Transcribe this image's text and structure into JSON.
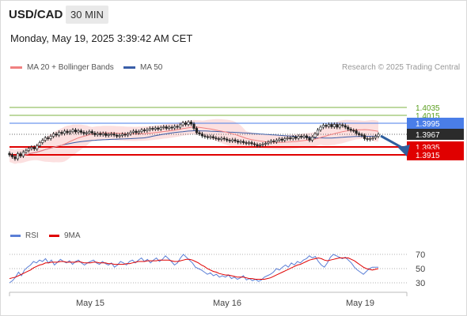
{
  "header": {
    "pair": "USD/CAD",
    "timeframe": "30 MIN",
    "datetime": "Monday, May 19, 2025 3:39:42 AM CET"
  },
  "legend": {
    "ma20": {
      "label": "MA 20 + Bollinger Bands",
      "color": "#f08080"
    },
    "ma50": {
      "label": "MA 50",
      "color": "#3a5ea8"
    },
    "copyright": "Research © 2025 Trading Central"
  },
  "rsi_legend": {
    "rsi": {
      "label": "RSI",
      "color": "#5b7fd6"
    },
    "ma9": {
      "label": "9MA",
      "color": "#e00000"
    }
  },
  "chart_data": [
    {
      "type": "candlestick",
      "title": "",
      "x_ticks": [
        "May 15",
        "May 16",
        "May 19"
      ],
      "levels": [
        {
          "value": 1.4035,
          "label": "1.4035",
          "kind": "target",
          "color": "#7cb342"
        },
        {
          "value": 1.4015,
          "label": "1.4015",
          "kind": "target",
          "color": "#7cb342"
        },
        {
          "value": 1.3995,
          "label": "1.3995",
          "kind": "pivot",
          "color": "#4a7ee8"
        },
        {
          "value": 1.3967,
          "label": "1.3967",
          "kind": "last",
          "color": "#2b2b2b"
        },
        {
          "value": 1.3935,
          "label": "1.3935",
          "kind": "support",
          "color": "#e00000"
        },
        {
          "value": 1.3915,
          "label": "1.3915",
          "kind": "support",
          "color": "#e00000"
        }
      ],
      "close": [
        1.3915,
        1.391,
        1.3905,
        1.3918,
        1.3912,
        1.3922,
        1.3926,
        1.3931,
        1.3934,
        1.393,
        1.3938,
        1.3946,
        1.3952,
        1.3958,
        1.3956,
        1.3962,
        1.3968,
        1.3965,
        1.3972,
        1.3969,
        1.3975,
        1.3971,
        1.3974,
        1.3978,
        1.3973,
        1.3976,
        1.3972,
        1.3969,
        1.3971,
        1.3974,
        1.397,
        1.3966,
        1.3969,
        1.3966,
        1.3969,
        1.3964,
        1.3966,
        1.3968,
        1.3965,
        1.3962,
        1.3964,
        1.3967,
        1.3965,
        1.3968,
        1.3972,
        1.3975,
        1.3971,
        1.3974,
        1.3978,
        1.3976,
        1.3979,
        1.3982,
        1.398,
        1.3983,
        1.398,
        1.3984,
        1.3986,
        1.3982,
        1.3985,
        1.3983,
        1.3987,
        1.3985,
        1.3991,
        1.3996,
        1.3992,
        1.3998,
        1.3993,
        1.3982,
        1.3971,
        1.3968,
        1.3963,
        1.3961,
        1.3959,
        1.3961,
        1.3958,
        1.3956,
        1.3954,
        1.3957,
        1.3955,
        1.3952,
        1.395,
        1.3953,
        1.395,
        1.3947,
        1.3949,
        1.3946,
        1.3944,
        1.3946,
        1.3943,
        1.3941,
        1.3938,
        1.394,
        1.3942,
        1.3944,
        1.3947,
        1.395,
        1.3948,
        1.3952,
        1.3955,
        1.3952,
        1.3956,
        1.3958,
        1.3956,
        1.396,
        1.3957,
        1.3962,
        1.396,
        1.3963,
        1.3958,
        1.3952,
        1.396,
        1.3968,
        1.3978,
        1.3985,
        1.399,
        1.3987,
        1.3992,
        1.3986,
        1.3992,
        1.3985,
        1.3991,
        1.3989,
        1.3985,
        1.398,
        1.3977,
        1.3976,
        1.3969,
        1.3966,
        1.3964,
        1.3956,
        1.3954,
        1.3956,
        1.3958,
        1.3962,
        1.3967
      ],
      "ma20_note": "MA 20 + Bollinger Bands",
      "ma50_note": "MA 50",
      "forecast": {
        "from": 1.3967,
        "to": 1.3915,
        "direction": "down"
      }
    },
    {
      "type": "line",
      "title": "",
      "y_ticks": [
        "70",
        "50",
        "30"
      ],
      "series": [
        {
          "name": "RSI",
          "color": "#5b7fd6"
        },
        {
          "name": "9MA",
          "color": "#e00000"
        }
      ],
      "rsi": [
        30,
        33,
        38,
        45,
        40,
        48,
        52,
        55,
        60,
        58,
        62,
        60,
        64,
        58,
        62,
        55,
        59,
        63,
        60,
        58,
        61,
        56,
        60,
        62,
        58,
        55,
        58,
        60,
        62,
        58,
        56,
        60,
        57,
        55,
        58,
        52,
        55,
        60,
        58,
        55,
        60,
        62,
        58,
        62,
        65,
        60,
        63,
        58,
        62,
        65,
        60,
        63,
        68,
        64,
        60,
        55,
        58,
        65,
        70,
        66,
        62,
        58,
        52,
        50,
        48,
        45,
        42,
        44,
        40,
        42,
        38,
        40,
        38,
        41,
        36,
        38,
        35,
        37,
        40,
        34,
        36,
        33,
        35,
        32,
        34,
        38,
        40,
        42,
        45,
        50,
        48,
        52,
        55,
        52,
        58,
        55,
        60,
        58,
        62,
        64,
        68,
        65,
        67,
        60,
        55,
        52,
        58,
        66,
        70,
        68,
        66,
        64,
        66,
        62,
        58,
        52,
        48,
        45,
        42,
        46,
        50,
        52,
        52,
        52
      ],
      "ma9": [
        36,
        37,
        38,
        40,
        42,
        44,
        46,
        48,
        51,
        53,
        55,
        56,
        58,
        58,
        59,
        59,
        59,
        60,
        60,
        59,
        59,
        59,
        59,
        60,
        59,
        58,
        58,
        58,
        59,
        59,
        58,
        58,
        58,
        57,
        57,
        56,
        56,
        56,
        56,
        57,
        57,
        58,
        59,
        60,
        60,
        60,
        61,
        61,
        61,
        61,
        62,
        62,
        62,
        62,
        61,
        60,
        60,
        61,
        62,
        63,
        63,
        62,
        60,
        58,
        55,
        53,
        50,
        48,
        46,
        45,
        43,
        42,
        41,
        41,
        40,
        39,
        38,
        38,
        38,
        37,
        36,
        36,
        35,
        35,
        35,
        35,
        36,
        37,
        39,
        41,
        43,
        45,
        47,
        49,
        51,
        53,
        55,
        56,
        58,
        60,
        62,
        63,
        64,
        65,
        64,
        62,
        61,
        62,
        63,
        64,
        65,
        65,
        65,
        65,
        63,
        61,
        58,
        55,
        52,
        50,
        49,
        48,
        49,
        50
      ]
    }
  ]
}
